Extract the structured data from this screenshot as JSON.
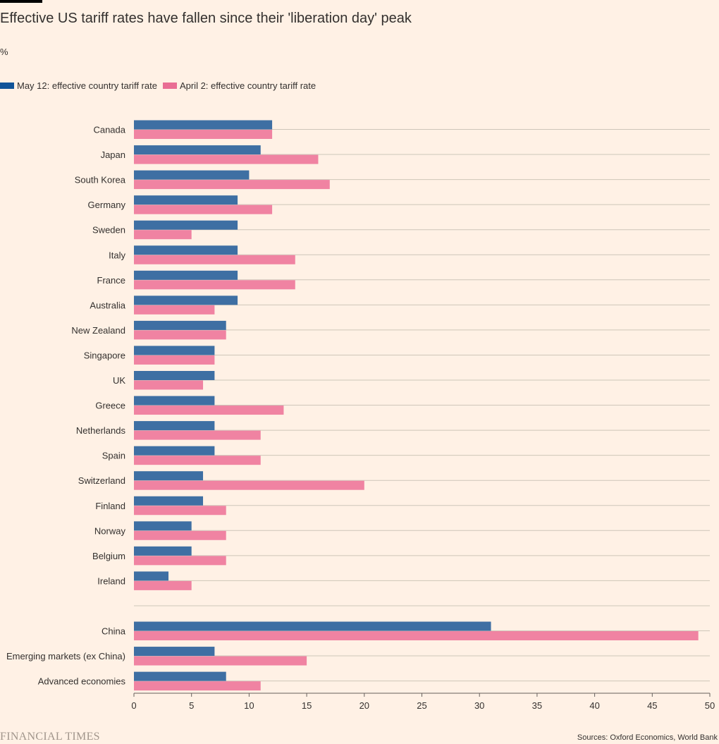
{
  "header": {
    "title": "Effective US tariff rates have fallen since their 'liberation day' peak",
    "unit": "%"
  },
  "colors": {
    "background": "#FFF1E5",
    "may12": "#3E6FA3",
    "april2": "#F083A2",
    "grid": "#CEC6B9",
    "text": "#33302E"
  },
  "legend": {
    "items": [
      {
        "label": "May 12: effective country tariff rate",
        "color": "#0F5499"
      },
      {
        "label": "April 2: effective country tariff rate",
        "color": "#E96E94"
      }
    ]
  },
  "chart_data": {
    "type": "bar",
    "orientation": "horizontal",
    "categories": [
      "Canada",
      "Japan",
      "South Korea",
      "Germany",
      "Sweden",
      "Italy",
      "France",
      "Australia",
      "New Zealand",
      "Singapore",
      "UK",
      "Greece",
      "Netherlands",
      "Spain",
      "Switzerland",
      "Finland",
      "Norway",
      "Belgium",
      "Ireland",
      "China",
      "Emerging markets (ex China)",
      "Advanced economies"
    ],
    "series": [
      {
        "name": "May 12: effective country tariff rate",
        "values": [
          12,
          11,
          10,
          9,
          9,
          9,
          9,
          9,
          8,
          7,
          7,
          7,
          7,
          7,
          6,
          6,
          5,
          5,
          3,
          31,
          7,
          8
        ]
      },
      {
        "name": "April 2: effective country tariff rate",
        "values": [
          12,
          16,
          17,
          12,
          5,
          14,
          14,
          7,
          8,
          7,
          6,
          13,
          11,
          11,
          20,
          8,
          8,
          8,
          5,
          49,
          15,
          11
        ]
      }
    ],
    "xlim": [
      0,
      50
    ],
    "xticks": [
      0,
      5,
      10,
      15,
      20,
      25,
      30,
      35,
      40,
      45,
      50
    ],
    "grid": true
  },
  "footer": {
    "logo": "FINANCIAL TIMES",
    "source": "Sources: Oxford Economics, World Bank"
  }
}
